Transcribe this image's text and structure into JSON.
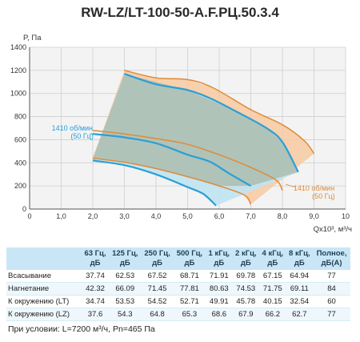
{
  "title": "RW-LZ/LT-100-50-A.F.РЦ.50.3.4",
  "chart_data": {
    "type": "line",
    "ylabel": "P, Па",
    "xlabel": "Qx10³, м³/ч",
    "xlim": [
      0,
      10
    ],
    "ylim": [
      0,
      1400
    ],
    "xticks": [
      "0",
      "1,0",
      "2,0",
      "3,0",
      "4,0",
      "5,0",
      "6,0",
      "7,0",
      "8,0",
      "9,0",
      "10"
    ],
    "yticks": [
      "0",
      "200",
      "400",
      "600",
      "800",
      "1000",
      "1200",
      "1400"
    ],
    "grid": true,
    "series": [
      {
        "name": "1410 об/мин (50 Гц)",
        "color": "#2a9fd6",
        "points": [
          [
            3.0,
            1170
          ],
          [
            4.0,
            1080
          ],
          [
            5.0,
            1030
          ],
          [
            5.7,
            960
          ],
          [
            6.5,
            850
          ],
          [
            7.5,
            700
          ],
          [
            8.0,
            580
          ],
          [
            8.5,
            320
          ]
        ]
      },
      {
        "name": "",
        "color": "#2a9fd6",
        "points": [
          [
            2.0,
            650
          ],
          [
            3.0,
            620
          ],
          [
            4.0,
            570
          ],
          [
            5.0,
            470
          ],
          [
            5.7,
            410
          ],
          [
            6.3,
            310
          ],
          [
            7.0,
            200
          ]
        ]
      },
      {
        "name": "",
        "color": "#2a9fd6",
        "points": [
          [
            2.0,
            420
          ],
          [
            3.0,
            380
          ],
          [
            4.0,
            300
          ],
          [
            5.0,
            190
          ],
          [
            5.5,
            130
          ],
          [
            5.9,
            30
          ]
        ]
      },
      {
        "name": "1410 об/мин (50 Гц)",
        "color": "#e08a36",
        "points": [
          [
            3.0,
            1200
          ],
          [
            4.0,
            1135
          ],
          [
            5.0,
            1120
          ],
          [
            5.8,
            1050
          ],
          [
            7.0,
            860
          ],
          [
            8.0,
            730
          ],
          [
            8.7,
            590
          ],
          [
            9.0,
            480
          ]
        ]
      },
      {
        "name": "",
        "color": "#e08a36",
        "points": [
          [
            2.0,
            680
          ],
          [
            3.0,
            650
          ],
          [
            4.0,
            610
          ],
          [
            5.0,
            560
          ],
          [
            6.0,
            470
          ],
          [
            7.0,
            360
          ],
          [
            7.8,
            250
          ],
          [
            8.0,
            160
          ]
        ]
      },
      {
        "name": "",
        "color": "#e08a36",
        "points": [
          [
            2.0,
            440
          ],
          [
            3.0,
            405
          ],
          [
            4.0,
            350
          ],
          [
            5.0,
            280
          ],
          [
            6.0,
            200
          ],
          [
            6.8,
            120
          ],
          [
            7.0,
            40
          ]
        ]
      }
    ],
    "annotations": [
      {
        "text": "1410 об/мин",
        "color": "#2a9fd6"
      },
      {
        "text": "(50 Гц)",
        "color": "#2a9fd6"
      },
      {
        "text": "1410 об/мин",
        "color": "#e08a36"
      },
      {
        "text": "(50 Гц)",
        "color": "#e08a36"
      }
    ],
    "regions": {
      "lt_fill": "#f7c9a1",
      "lz_fill": "#bfe3f2",
      "overlap_fill": "#a8b8a8"
    }
  },
  "table": {
    "headers": [
      "",
      "63 Гц, дБ",
      "125 Гц, дБ",
      "250 Гц, дБ",
      "500 Гц, дБ",
      "1 кГц, дБ",
      "2 кГц, дБ",
      "4 кГц, дБ",
      "8 кГц, дБ",
      "Полное, дБ(A)"
    ],
    "header_lines": [
      [
        "",
        ""
      ],
      [
        "63 Гц,",
        "дБ"
      ],
      [
        "125 Гц,",
        "дБ"
      ],
      [
        "250 Гц,",
        "дБ"
      ],
      [
        "500 Гц,",
        "дБ"
      ],
      [
        "1 кГц,",
        "дБ"
      ],
      [
        "2 кГц,",
        "дБ"
      ],
      [
        "4 кГц,",
        "дБ"
      ],
      [
        "8 кГц,",
        "дБ"
      ],
      [
        "Полное,",
        "дБ(A)"
      ]
    ],
    "rows": [
      [
        "Всасывание",
        "37.74",
        "62.53",
        "67.52",
        "68.71",
        "71.91",
        "69.78",
        "67.15",
        "64.94",
        "77"
      ],
      [
        "Нагнетание",
        "42.32",
        "66.09",
        "71.45",
        "77.81",
        "80.63",
        "74.53",
        "71.75",
        "69.11",
        "84"
      ],
      [
        "К окружению (LT)",
        "34.74",
        "53.53",
        "54.52",
        "52.71",
        "49.91",
        "45.78",
        "40.15",
        "32.54",
        "60"
      ],
      [
        "К окружению (LZ)",
        "37.6",
        "54.3",
        "64.8",
        "65.3",
        "68.6",
        "67.9",
        "66.2",
        "62.7",
        "77"
      ]
    ]
  },
  "conditions": "При условии: L=7200 м³/ч, Pn=465 Па"
}
